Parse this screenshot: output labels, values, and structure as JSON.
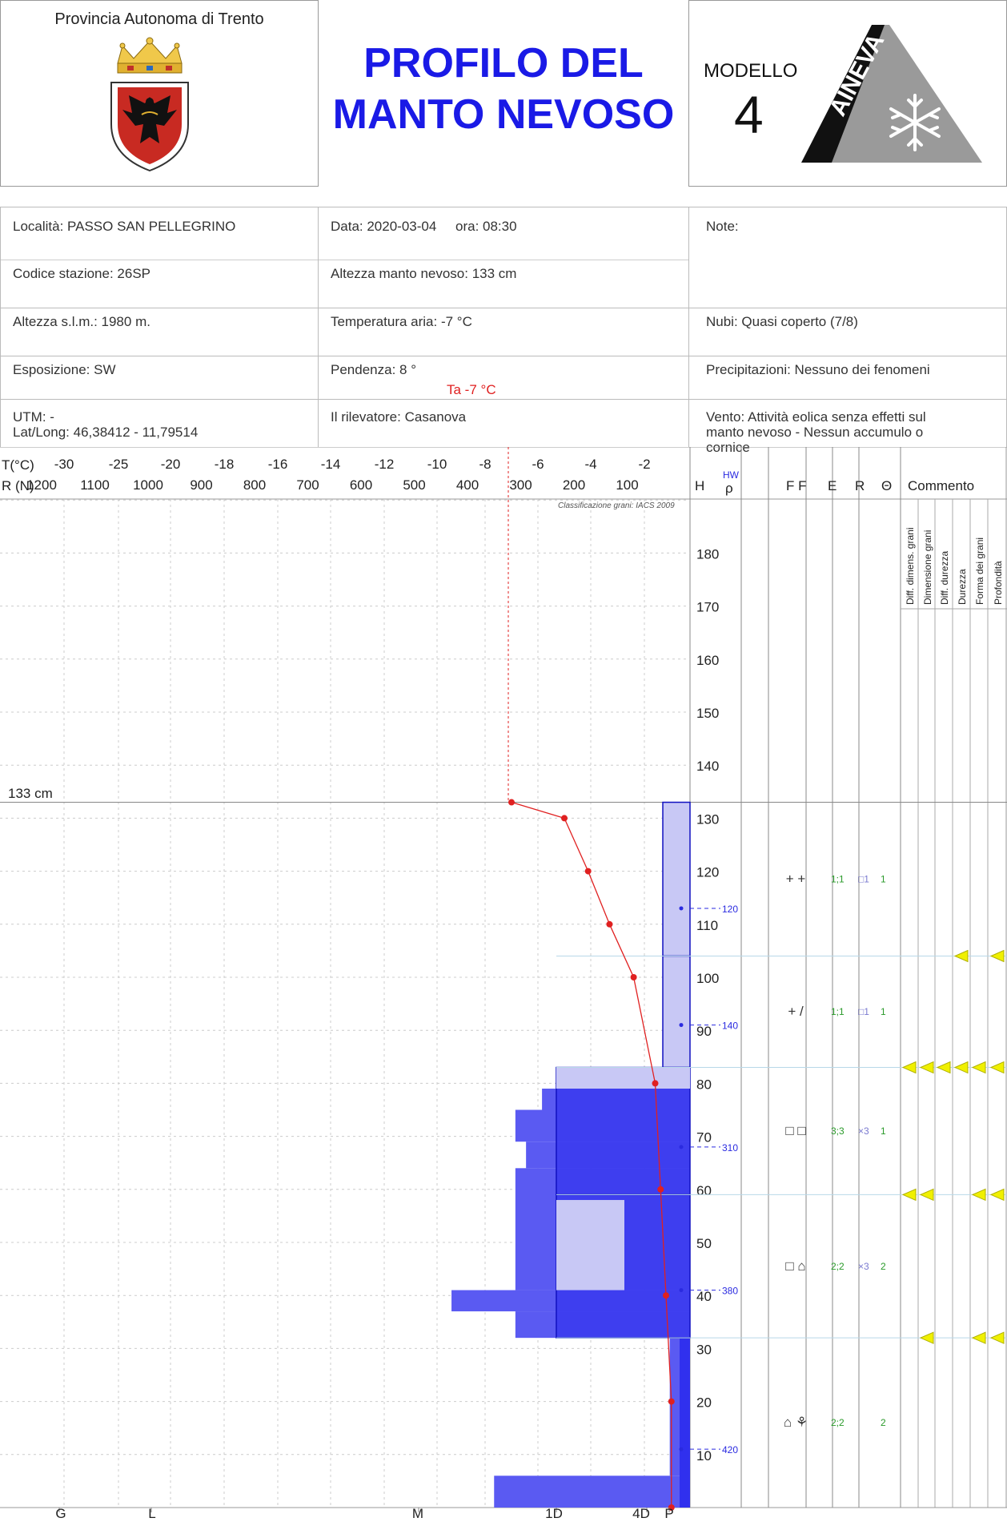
{
  "header": {
    "province": "Provincia Autonoma di Trento",
    "title_line1": "PROFILO DEL",
    "title_line2": "MANTO NEVOSO",
    "modello_label": "MODELLO",
    "modello_number": "4",
    "logo_text": "AINEVA"
  },
  "info": {
    "localita": "Località: PASSO SAN PELLEGRINO",
    "data": "Data: 2020-03-04",
    "ora": "ora: 08:30",
    "note": "Note:",
    "codice": "Codice stazione: 26SP",
    "altezza_manto": "Altezza manto nevoso: 133 cm",
    "altezza_slm": "Altezza s.l.m.: 1980 m.",
    "temperatura": "Temperatura aria: -7 °C",
    "nubi": "Nubi: Quasi coperto (7/8)",
    "esposizione": "Esposizione: SW",
    "pendenza": "Pendenza: 8 °",
    "precipitazioni": "Precipitazioni: Nessuno dei fenomeni",
    "utm": "UTM:  -",
    "latlong": "Lat/Long: 46,38412 - 11,79514",
    "rilevatore": "Il rilevatore: Casanova",
    "vento_line1": "Vento: Attività eolica senza effetti sul",
    "vento_line2": "manto nevoso - Nessun accumulo o",
    "vento_line3": "cornice"
  },
  "columns": {
    "t_label": "T(°C)",
    "r_label": "R (N)",
    "h": "H",
    "hw": "HW",
    "rho": "ρ",
    "ff": "F F",
    "e": "E",
    "r": "R",
    "theta": "Θ",
    "commento": "Commento",
    "classification": "Classificazione grani: IACS 2009",
    "comment_cols": [
      "Diff. dimens. grani",
      "Dimensione grani",
      "Diff. durezza",
      "Durezza",
      "Forma dei grani",
      "Profondità"
    ]
  },
  "hardness_labels": [
    "G",
    "L",
    "M",
    "1D",
    "4D",
    "P"
  ],
  "snow_height_label": "133 cm",
  "air_temp_label": "Ta -7 °C",
  "chart_data": {
    "type": "snow_profile",
    "temperature_axis": {
      "label": "T(°C)",
      "ticks": [
        -30,
        -25,
        -20,
        -18,
        -16,
        -14,
        -12,
        -10,
        -8,
        -6,
        -4,
        -2
      ]
    },
    "resistance_axis": {
      "label": "R (N)",
      "ticks": [
        1200,
        1100,
        1000,
        900,
        800,
        700,
        600,
        500,
        400,
        300,
        200,
        100
      ]
    },
    "height_axis": {
      "label": "H",
      "ticks": [
        10,
        20,
        30,
        40,
        50,
        60,
        70,
        80,
        90,
        100,
        110,
        120,
        130,
        140,
        150,
        160,
        170,
        180
      ]
    },
    "snow_height_cm": 133,
    "air_temperature": -7,
    "temperature_profile": [
      {
        "h": 133,
        "t": -7
      },
      {
        "h": 130,
        "t": -5
      },
      {
        "h": 120,
        "t": -4.1
      },
      {
        "h": 110,
        "t": -3.3
      },
      {
        "h": 100,
        "t": -2.4
      },
      {
        "h": 80,
        "t": -1.4
      },
      {
        "h": 60,
        "t": -1.1
      },
      {
        "h": 40,
        "t": -0.8
      },
      {
        "h": 20,
        "t": -0.5
      },
      {
        "h": 0,
        "t": -0.5
      }
    ],
    "ram_resistance": [
      {
        "from": 0,
        "to": 6,
        "r": 350
      },
      {
        "from": 6,
        "to": 32,
        "r": 20
      },
      {
        "from": 32,
        "to": 37,
        "r": 310
      },
      {
        "from": 37,
        "to": 41,
        "r": 430
      },
      {
        "from": 41,
        "to": 64,
        "r": 310
      },
      {
        "from": 64,
        "to": 69,
        "r": 290
      },
      {
        "from": 69,
        "to": 75,
        "r": 310
      },
      {
        "from": 75,
        "to": 79,
        "r": 260
      }
    ],
    "layers": [
      {
        "from": 104,
        "to": 133,
        "hardness": "4D",
        "hardness_secondary": "4D",
        "form": "+ +",
        "E": "1;1",
        "R": "□1",
        "theta": "1"
      },
      {
        "from": 83,
        "to": 104,
        "hardness": "4D",
        "hardness_secondary": "4D",
        "form": "+ /",
        "E": "1;1",
        "R": "□1",
        "theta": "1"
      },
      {
        "from": 59,
        "to": 83,
        "hardness": "1D",
        "hardness_secondary": "1D",
        "form": "□ □",
        "E": "3;3",
        "R": "×3",
        "theta": "1"
      },
      {
        "from": 32,
        "to": 59,
        "hardness": "1D",
        "hardness_secondary": "1D",
        "form": "□ ⌂",
        "E": "2;2",
        "R": "×3",
        "theta": "2"
      },
      {
        "from": 0,
        "to": 32,
        "hardness": "P",
        "hardness_secondary": "P",
        "form": "⌂ ⚘",
        "E": "2;2",
        "R": "",
        "theta": "2"
      }
    ],
    "density": [
      {
        "h": 113,
        "rho": 120
      },
      {
        "h": 91,
        "rho": 140
      },
      {
        "h": 68,
        "rho": 310
      },
      {
        "h": 41,
        "rho": 380
      },
      {
        "h": 11,
        "rho": 420
      }
    ],
    "comment_markers": [
      {
        "h": 104,
        "cols": [
          3,
          5
        ]
      },
      {
        "h": 83,
        "cols": [
          0,
          1,
          2,
          3,
          4,
          5
        ]
      },
      {
        "h": 59,
        "cols": [
          0,
          1,
          4,
          5
        ]
      },
      {
        "h": 32,
        "cols": [
          1,
          4,
          5
        ]
      }
    ]
  }
}
